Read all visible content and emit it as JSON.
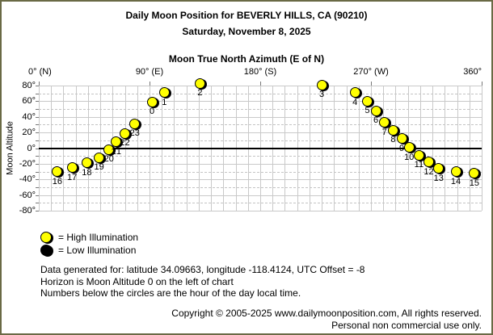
{
  "header": {
    "title": "Daily Moon Position for BEVERLY HILLS, CA (90210)",
    "date": "Saturday, November 8, 2025"
  },
  "chart_data": {
    "type": "scatter",
    "title": "Moon True North Azimuth (E of N)",
    "xlabel": "Moon True North Azimuth (E of N)",
    "ylabel": "Moon Altitude",
    "xlim": [
      0,
      360
    ],
    "ylim": [
      -80,
      80
    ],
    "x_minor_step": 10,
    "y_major_step": 20,
    "y_minor_step": 10,
    "grid": true,
    "horizon_altitude": 0,
    "point_color_high": "#ffff00",
    "point_color_low": "#000000",
    "x_ticks": [
      {
        "az": 0,
        "label": "0° (N)"
      },
      {
        "az": 90,
        "label": "90° (E)"
      },
      {
        "az": 180,
        "label": "180° (S)"
      },
      {
        "az": 270,
        "label": "270° (W)"
      },
      {
        "az": 360,
        "label": "360°"
      }
    ],
    "y_ticks": [
      {
        "alt": 80,
        "label": "80°"
      },
      {
        "alt": 60,
        "label": "60°"
      },
      {
        "alt": 40,
        "label": "40°"
      },
      {
        "alt": 20,
        "label": "20°"
      },
      {
        "alt": 0,
        "label": "0°"
      },
      {
        "alt": -20,
        "label": "-20°"
      },
      {
        "alt": -40,
        "label": "-40°"
      },
      {
        "alt": -60,
        "label": "-60°"
      },
      {
        "alt": -80,
        "label": "-80°"
      }
    ],
    "points": [
      {
        "hour": 16,
        "azimuth": 15,
        "altitude": -30,
        "illumination": "high"
      },
      {
        "hour": 17,
        "azimuth": 27,
        "altitude": -25,
        "illumination": "high"
      },
      {
        "hour": 18,
        "azimuth": 39,
        "altitude": -19,
        "illumination": "high"
      },
      {
        "hour": 19,
        "azimuth": 49,
        "altitude": -12,
        "illumination": "high"
      },
      {
        "hour": 20,
        "azimuth": 57,
        "altitude": -2,
        "illumination": "high"
      },
      {
        "hour": 21,
        "azimuth": 63,
        "altitude": 8,
        "illumination": "high"
      },
      {
        "hour": 22,
        "azimuth": 70,
        "altitude": 19,
        "illumination": "high"
      },
      {
        "hour": 23,
        "azimuth": 78,
        "altitude": 31,
        "illumination": "high"
      },
      {
        "hour": 0,
        "azimuth": 92,
        "altitude": 59,
        "illumination": "high"
      },
      {
        "hour": 1,
        "azimuth": 102,
        "altitude": 71,
        "illumination": "high"
      },
      {
        "hour": 2,
        "azimuth": 131,
        "altitude": 83,
        "illumination": "high"
      },
      {
        "hour": 3,
        "azimuth": 230,
        "altitude": 81,
        "illumination": "high"
      },
      {
        "hour": 4,
        "azimuth": 257,
        "altitude": 71,
        "illumination": "high"
      },
      {
        "hour": 5,
        "azimuth": 267,
        "altitude": 60,
        "illumination": "high"
      },
      {
        "hour": 6,
        "azimuth": 274,
        "altitude": 48,
        "illumination": "high"
      },
      {
        "hour": 7,
        "azimuth": 281,
        "altitude": 33,
        "illumination": "high"
      },
      {
        "hour": 8,
        "azimuth": 288,
        "altitude": 23,
        "illumination": "high"
      },
      {
        "hour": 9,
        "azimuth": 295,
        "altitude": 12,
        "illumination": "high"
      },
      {
        "hour": 10,
        "azimuth": 301,
        "altitude": 1,
        "illumination": "high"
      },
      {
        "hour": 11,
        "azimuth": 309,
        "altitude": -9,
        "illumination": "high"
      },
      {
        "hour": 12,
        "azimuth": 317,
        "altitude": -18,
        "illumination": "high"
      },
      {
        "hour": 13,
        "azimuth": 325,
        "altitude": -26,
        "illumination": "high"
      },
      {
        "hour": 14,
        "azimuth": 339,
        "altitude": -30,
        "illumination": "high"
      },
      {
        "hour": 15,
        "azimuth": 354,
        "altitude": -32,
        "illumination": "high"
      }
    ]
  },
  "legend": {
    "high": "= High Illumination",
    "low": "= Low Illumination"
  },
  "notes": {
    "line1": "Data generated for: latitude 34.09663, longitude -118.4124, UTC Offset = -8",
    "line2": "Horizon is Moon Altitude 0 on the left of chart",
    "line3": "Numbers below the circles are the hour of the day local time."
  },
  "footer": {
    "line1": "Copyright © 2005-2025 www.dailymoonposition.com, All rights reserved.",
    "line2": "Personal non commercial use only."
  }
}
